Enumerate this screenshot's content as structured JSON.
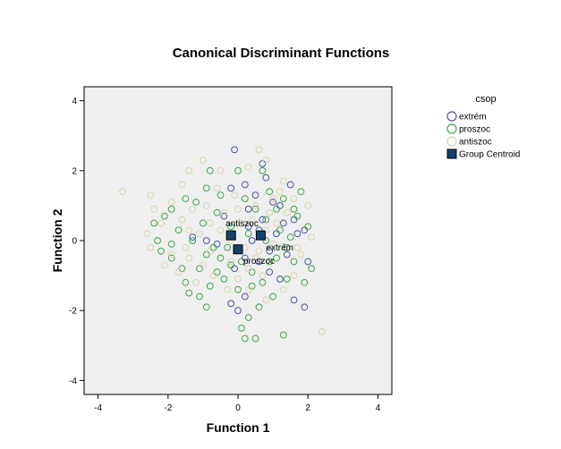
{
  "chart_data": {
    "type": "scatter",
    "title": "Canonical Discriminant Functions",
    "xlabel": "Function 1",
    "ylabel": "Function 2",
    "xlim": [
      -4.4,
      4.4
    ],
    "ylim": [
      -4.4,
      4.4
    ],
    "xticks": [
      -4,
      -2,
      0,
      2,
      4
    ],
    "yticks": [
      -4,
      -2,
      0,
      2,
      4
    ],
    "xtick_labels": [
      "-4",
      "-2",
      "0",
      "2",
      "4"
    ],
    "ytick_labels": [
      "-4",
      "-2",
      "0",
      "2",
      "4"
    ],
    "grid": false,
    "legend_title": "csop",
    "legend_position": "right",
    "plot_background": "#efefef",
    "series": [
      {
        "name": "extrém",
        "color": "#4a55a8",
        "marker": "open-circle",
        "points": [
          [
            -0.1,
            2.6
          ],
          [
            0.2,
            1.6
          ],
          [
            0.7,
            2.2
          ],
          [
            0.8,
            1.8
          ],
          [
            -0.2,
            1.5
          ],
          [
            0.5,
            1.3
          ],
          [
            1.0,
            1.1
          ],
          [
            1.5,
            1.6
          ],
          [
            1.6,
            0.6
          ],
          [
            1.3,
            0.5
          ],
          [
            1.9,
            0.3
          ],
          [
            2.0,
            -0.6
          ],
          [
            1.6,
            -1.7
          ],
          [
            1.9,
            -1.9
          ],
          [
            1.2,
            -1.1
          ],
          [
            0.9,
            -0.9
          ],
          [
            0.2,
            -1.6
          ],
          [
            0.0,
            -2.0
          ],
          [
            -0.2,
            -1.8
          ],
          [
            -0.1,
            -0.8
          ],
          [
            0.6,
            0.3
          ],
          [
            0.7,
            0.6
          ],
          [
            0.4,
            0.0
          ],
          [
            -0.4,
            0.7
          ],
          [
            1.1,
            0.2
          ],
          [
            0.9,
            -0.3
          ],
          [
            -0.6,
            -0.1
          ],
          [
            -1.3,
            0.1
          ],
          [
            0.3,
            0.9
          ],
          [
            1.4,
            -0.4
          ],
          [
            0.6,
            -0.6
          ],
          [
            -0.9,
            0.0
          ],
          [
            0.2,
            -0.5
          ],
          [
            1.7,
            0.2
          ],
          [
            1.2,
            1.0
          ],
          [
            0.3,
            0.4
          ]
        ]
      },
      {
        "name": "proszoc",
        "color": "#3da84a",
        "marker": "open-circle",
        "points": [
          [
            -0.8,
            2.0
          ],
          [
            0.0,
            2.0
          ],
          [
            0.7,
            2.0
          ],
          [
            -0.9,
            1.5
          ],
          [
            -1.5,
            1.2
          ],
          [
            -1.9,
            0.9
          ],
          [
            -2.1,
            0.7
          ],
          [
            -2.4,
            0.5
          ],
          [
            -2.3,
            0.0
          ],
          [
            -2.2,
            -0.3
          ],
          [
            -1.9,
            -0.5
          ],
          [
            -1.6,
            -0.8
          ],
          [
            -1.5,
            -1.2
          ],
          [
            -1.4,
            -1.5
          ],
          [
            -1.1,
            -1.6
          ],
          [
            -0.9,
            -1.9
          ],
          [
            -0.8,
            -1.3
          ],
          [
            -0.6,
            -0.9
          ],
          [
            -0.5,
            -0.5
          ],
          [
            -0.3,
            -0.2
          ],
          [
            0.1,
            -0.6
          ],
          [
            0.4,
            -0.9
          ],
          [
            0.7,
            -1.2
          ],
          [
            0.6,
            -1.9
          ],
          [
            0.3,
            -2.2
          ],
          [
            0.1,
            -2.5
          ],
          [
            0.2,
            -2.8
          ],
          [
            0.5,
            -2.8
          ],
          [
            1.0,
            -1.6
          ],
          [
            1.4,
            -1.1
          ],
          [
            1.9,
            -1.2
          ],
          [
            2.1,
            -0.8
          ],
          [
            2.0,
            0.4
          ],
          [
            1.7,
            0.7
          ],
          [
            1.8,
            1.4
          ],
          [
            1.3,
            1.2
          ],
          [
            1.1,
            0.9
          ],
          [
            0.8,
            0.6
          ],
          [
            1.2,
            0.3
          ],
          [
            1.4,
            -0.2
          ],
          [
            1.1,
            -0.5
          ],
          [
            0.8,
            0.0
          ],
          [
            0.3,
            0.2
          ],
          [
            -0.2,
            0.4
          ],
          [
            -0.6,
            0.8
          ],
          [
            -1.0,
            0.5
          ],
          [
            -1.3,
            0.0
          ],
          [
            -0.9,
            -0.4
          ],
          [
            -0.4,
            -1.1
          ],
          [
            0.0,
            -1.4
          ],
          [
            0.4,
            -1.3
          ],
          [
            0.9,
            -0.6
          ],
          [
            1.5,
            0.1
          ],
          [
            1.6,
            0.9
          ],
          [
            -1.2,
            1.1
          ],
          [
            -0.5,
            1.3
          ],
          [
            -1.7,
            0.3
          ],
          [
            -1.9,
            -0.1
          ],
          [
            1.3,
            -2.7
          ],
          [
            0.5,
            0.9
          ],
          [
            -0.2,
            -0.7
          ],
          [
            0.9,
            1.4
          ],
          [
            -0.7,
            -0.2
          ],
          [
            0.2,
            1.2
          ],
          [
            -1.1,
            -0.8
          ],
          [
            1.6,
            -0.6
          ]
        ]
      },
      {
        "name": "antiszoc",
        "color": "#d9d3ae",
        "marker": "open-circle",
        "points": [
          [
            -3.3,
            1.4
          ],
          [
            -2.5,
            1.3
          ],
          [
            -2.4,
            0.9
          ],
          [
            -2.6,
            0.2
          ],
          [
            -2.5,
            -0.2
          ],
          [
            -2.2,
            0.5
          ],
          [
            -1.9,
            1.1
          ],
          [
            -1.6,
            1.6
          ],
          [
            -1.4,
            2.0
          ],
          [
            -1.0,
            2.3
          ],
          [
            -0.5,
            2.0
          ],
          [
            0.3,
            2.1
          ],
          [
            0.6,
            2.6
          ],
          [
            0.8,
            2.3
          ],
          [
            1.3,
            1.7
          ],
          [
            1.2,
            1.4
          ],
          [
            1.6,
            1.2
          ],
          [
            2.0,
            1.0
          ],
          [
            2.1,
            0.1
          ],
          [
            1.8,
            -0.4
          ],
          [
            1.6,
            -1.0
          ],
          [
            1.3,
            -1.4
          ],
          [
            0.8,
            -1.7
          ],
          [
            0.3,
            -1.4
          ],
          [
            0.0,
            -1.1
          ],
          [
            -0.3,
            -1.4
          ],
          [
            -0.7,
            -1.0
          ],
          [
            -1.0,
            -0.7
          ],
          [
            -1.4,
            -0.5
          ],
          [
            -1.7,
            -0.9
          ],
          [
            -1.9,
            -0.4
          ],
          [
            -1.6,
            0.6
          ],
          [
            -1.3,
            0.9
          ],
          [
            -0.9,
            1.0
          ],
          [
            -0.4,
            0.8
          ],
          [
            0.0,
            0.9
          ],
          [
            0.4,
            0.6
          ],
          [
            0.8,
            0.3
          ],
          [
            1.0,
            -0.1
          ],
          [
            0.6,
            -0.3
          ],
          [
            0.2,
            -0.2
          ],
          [
            -0.2,
            0.0
          ],
          [
            -0.5,
            0.3
          ],
          [
            -0.8,
            -0.3
          ],
          [
            -1.1,
            0.2
          ],
          [
            -1.4,
            0.3
          ],
          [
            0.9,
            0.8
          ],
          [
            1.1,
            0.5
          ],
          [
            0.5,
            1.0
          ],
          [
            -0.1,
            1.3
          ],
          [
            -0.6,
            1.5
          ],
          [
            1.4,
            0.8
          ],
          [
            0.7,
            -1.0
          ],
          [
            -0.2,
            -0.6
          ],
          [
            2.4,
            -2.6
          ],
          [
            1.7,
            -0.2
          ],
          [
            -2.1,
            -0.7
          ],
          [
            0.5,
            -0.5
          ],
          [
            -1.2,
            -1.2
          ],
          [
            0.1,
            0.5
          ],
          [
            1.0,
            1.2
          ],
          [
            -0.8,
            0.5
          ],
          [
            -1.5,
            -0.2
          ],
          [
            0.3,
            -0.8
          ]
        ]
      }
    ],
    "centroids": {
      "legend_label": "Group Centroid",
      "color": "#12426e",
      "points": [
        {
          "label": "antiszoc",
          "x": -0.2,
          "y": 0.15
        },
        {
          "label": "extrém",
          "x": 0.65,
          "y": 0.15
        },
        {
          "label": "proszoc",
          "x": 0.0,
          "y": -0.25
        }
      ]
    }
  }
}
